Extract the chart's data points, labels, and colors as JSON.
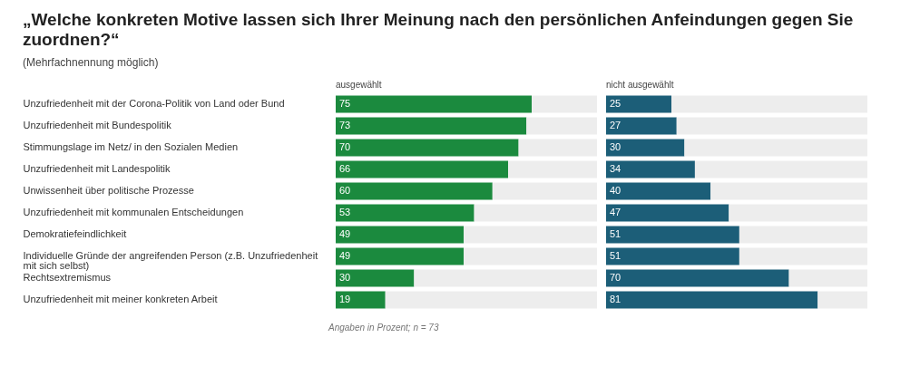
{
  "chart_data": [
    {
      "type": "bar",
      "orientation": "horizontal",
      "stacked": true,
      "title": "„Welche konkreten Motive lassen sich Ihrer Meinung nach den persönlichen Anfeindungen gegen Sie zuordnen?“",
      "subtitle": "(Mehrfachnennung möglich)",
      "categories": [
        "Unzufriedenheit mit der Corona-Politik von Land oder Bund",
        "Unzufriedenheit mit Bundespolitik",
        "Stimmungslage im Netz/ in den Sozialen Medien",
        "Unzufriedenheit mit Landespolitik",
        "Unwissenheit über politische Prozesse",
        "Unzufriedenheit mit kommunalen Entscheidungen",
        "Demokratiefeindlichkeit",
        "Individuelle Gründe der angreifenden Person (z.B. Unzufriedenheit mit sich selbst)",
        "Rechtsextremismus",
        "Unzufriedenheit mit meiner konkreten Arbeit"
      ],
      "series": [
        {
          "name": "ausgewählt",
          "color": "#1b8a3e",
          "values": [
            75,
            73,
            70,
            66,
            60,
            53,
            49,
            49,
            30,
            19
          ],
          "value_labels": [
            "75",
            "73",
            "70",
            "66",
            "60",
            "53",
            "49",
            "49",
            "30",
            "19"
          ]
        },
        {
          "color": "#ededed",
          "values": [
            25,
            27,
            30,
            34,
            40,
            47,
            51,
            51,
            70,
            81
          ]
        }
      ],
      "xlim": [
        0,
        100
      ],
      "tick_labels": "y",
      "annotations": [
        "Angaben in Prozent; n = 73"
      ]
    },
    {
      "type": "bar",
      "orientation": "horizontal",
      "stacked": true,
      "categories": [
        null,
        null,
        null,
        null,
        null,
        null,
        null,
        null,
        null,
        null
      ],
      "series": [
        {
          "name": "nicht ausgewählt",
          "color": "#1c5e78",
          "values": [
            25,
            27,
            30,
            34,
            40,
            47,
            51,
            51,
            70,
            81
          ],
          "value_labels": [
            "25",
            "27",
            "30",
            "34",
            "40",
            "47",
            "51",
            "51",
            "70",
            "81"
          ]
        },
        {
          "color": "#ededed",
          "values": [
            75,
            73,
            70,
            66,
            60,
            53,
            49,
            49,
            30,
            19
          ]
        }
      ],
      "xlim": [
        0,
        100
      ],
      "tick_labels": false
    }
  ]
}
